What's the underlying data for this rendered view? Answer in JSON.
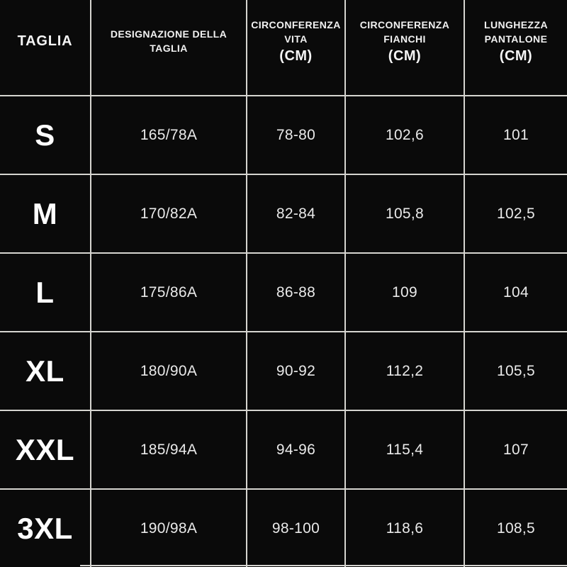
{
  "chart_data": {
    "type": "table",
    "title": "",
    "columns": [
      "TAGLIA",
      "DESIGNAZIONE DELLA TAGLIA",
      "CIRCONFERENZA VITA (CM)",
      "CIRCONFERENZA FIANCHI (CM)",
      "LUNGHEZZA PANTALONE (CM)"
    ],
    "header_lines": [
      [
        "TAGLIA"
      ],
      [
        "DESIGNAZIONE DELLA",
        "TAGLIA"
      ],
      [
        "CIRCONFERENZA",
        "VITA",
        "(CM)"
      ],
      [
        "CIRCONFERENZA",
        "FIANCHI",
        "(CM)"
      ],
      [
        "LUNGHEZZA",
        "PANTALONE",
        "(CM)"
      ]
    ],
    "rows": [
      [
        "S",
        "165/78A",
        "78-80",
        "102,6",
        "101"
      ],
      [
        "M",
        "170/82A",
        "82-84",
        "105,8",
        "102,5"
      ],
      [
        "L",
        "175/86A",
        "86-88",
        "109",
        "104"
      ],
      [
        "XL",
        "180/90A",
        "90-92",
        "112,2",
        "105,5"
      ],
      [
        "XXL",
        "185/94A",
        "94-96",
        "115,4",
        "107"
      ],
      [
        "3XL",
        "190/98A",
        "98-100",
        "118,6",
        "108,5"
      ]
    ],
    "layout": {
      "grid": true,
      "legend": "none"
    }
  },
  "colors": {
    "background": "#060606",
    "cell_background": "#0a0a0a",
    "grid_line": "#d6d5d0",
    "header_text": "#f2f2f2",
    "size_text": "#ffffff",
    "value_text": "#e9e9e9"
  }
}
